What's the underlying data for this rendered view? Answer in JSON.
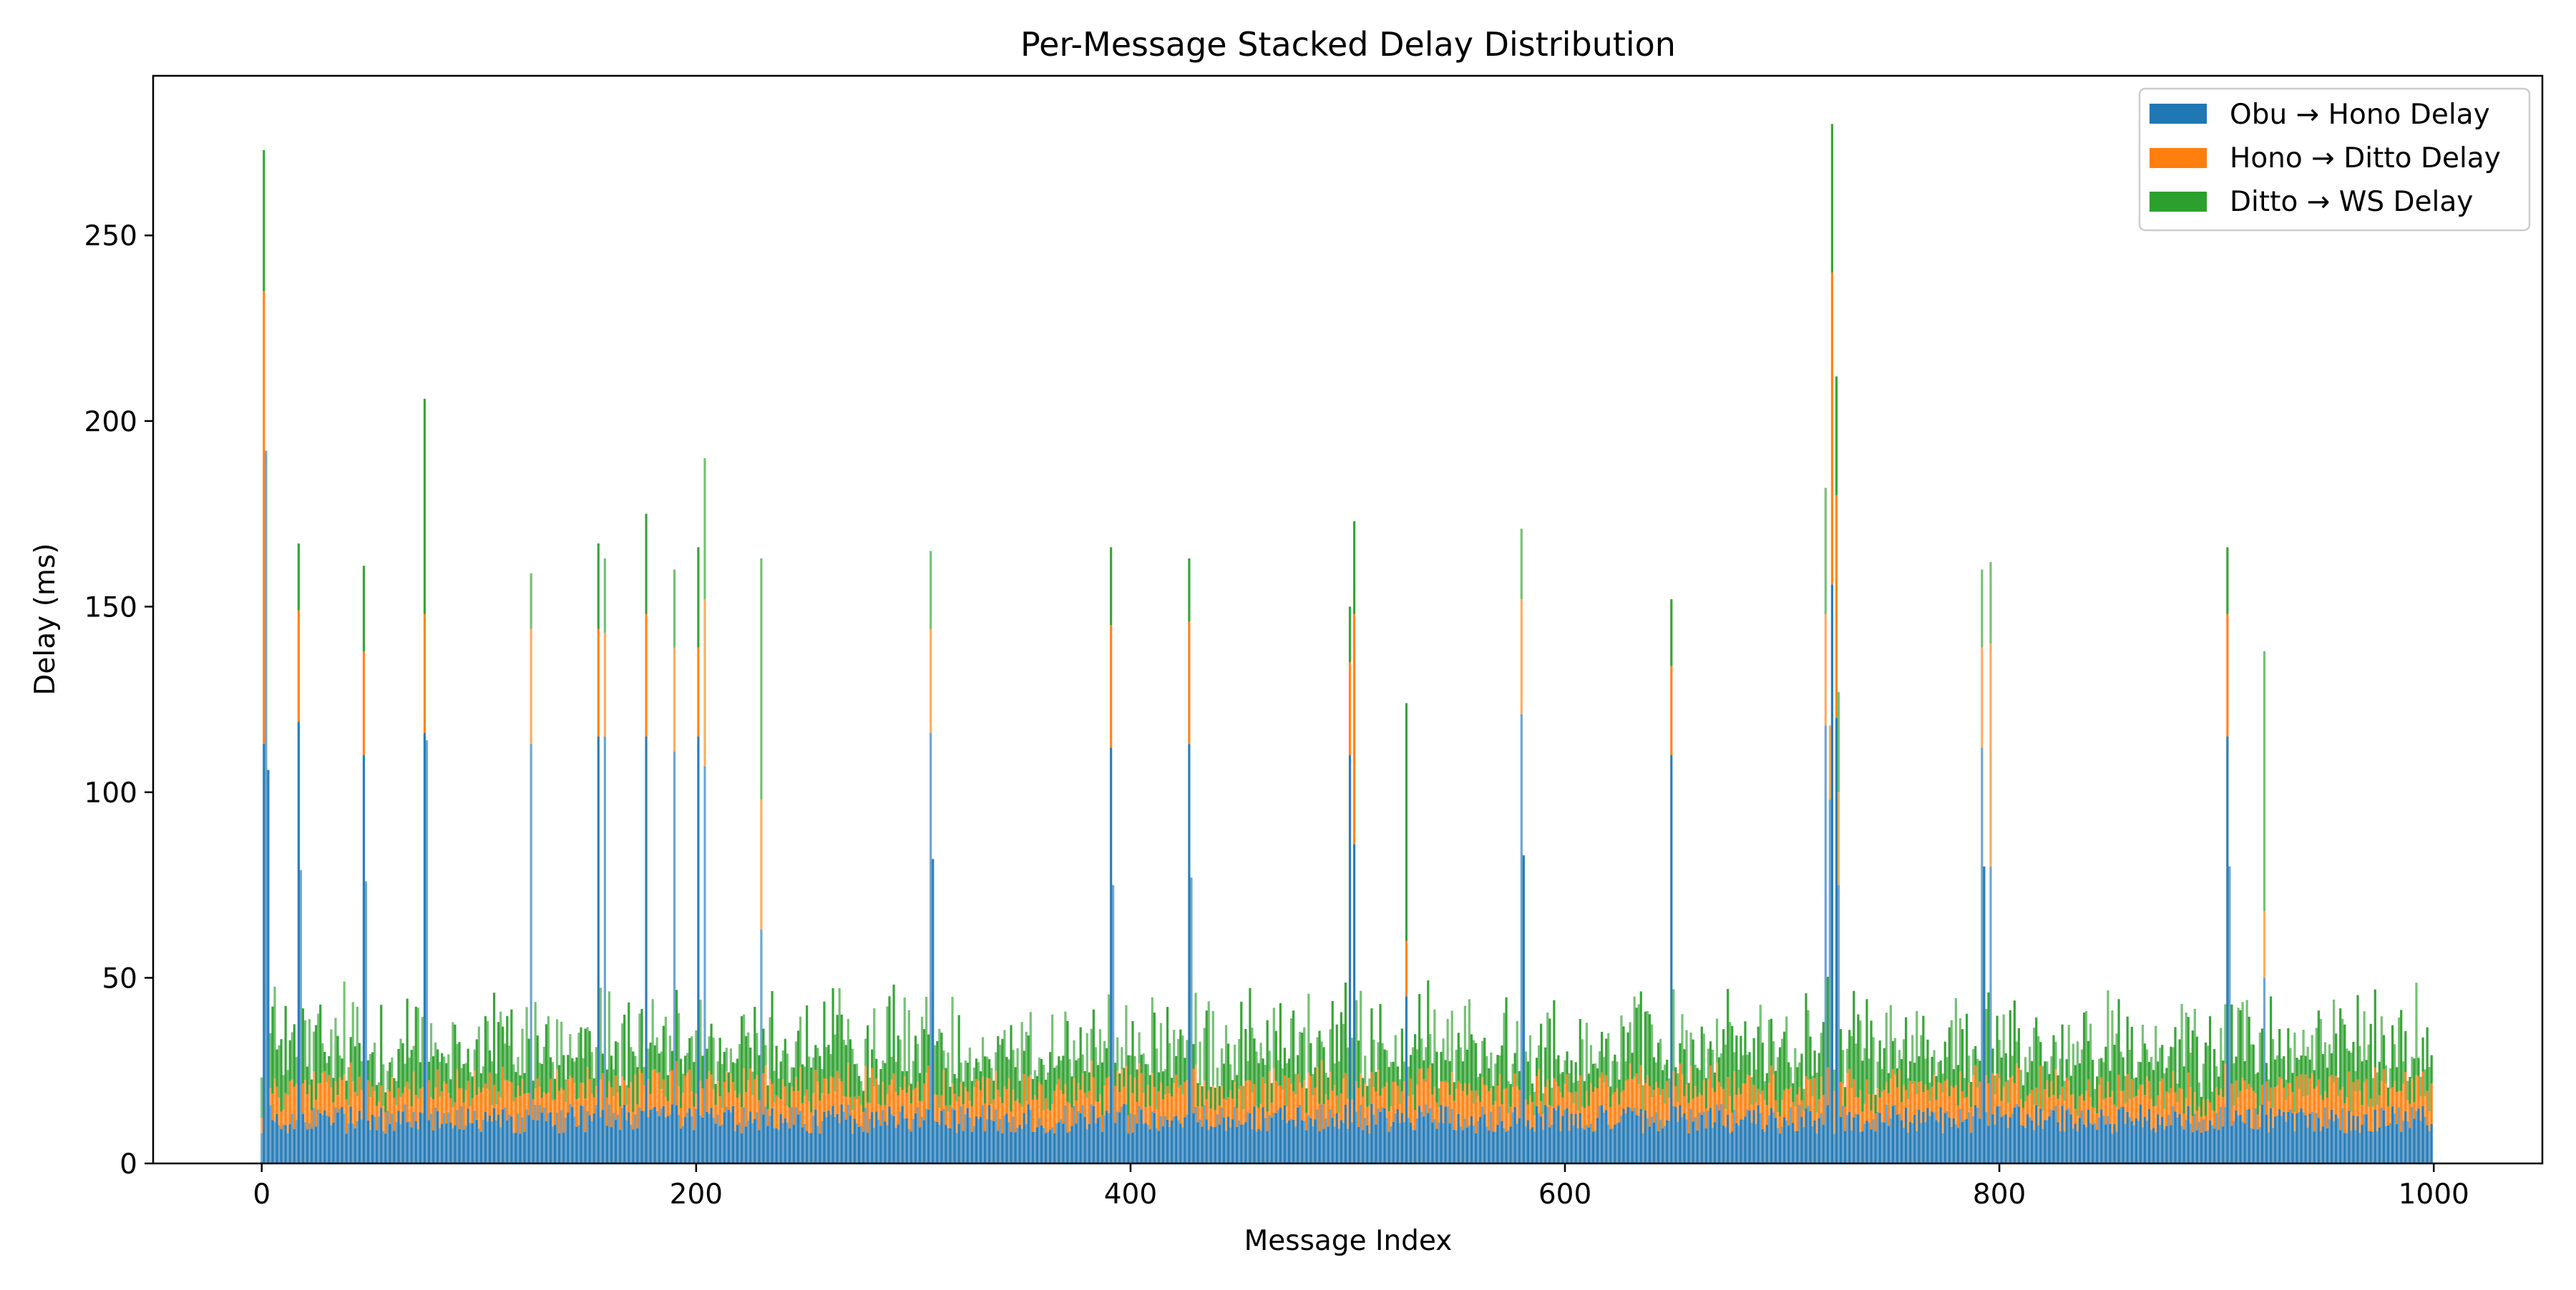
{
  "chart_data": {
    "type": "bar",
    "stacked": true,
    "title": "Per-Message Stacked Delay Distribution",
    "xlabel": "Message Index",
    "ylabel": "Delay (ms)",
    "xlim": [
      -50,
      1050
    ],
    "ylim": [
      0,
      293
    ],
    "xticks": [
      0,
      200,
      400,
      600,
      800,
      1000
    ],
    "yticks": [
      0,
      50,
      100,
      150,
      200,
      250
    ],
    "xtick_labels": [
      "0",
      "200",
      "400",
      "600",
      "800",
      "1000"
    ],
    "ytick_labels": [
      "0",
      "50",
      "100",
      "150",
      "200",
      "250"
    ],
    "grid": false,
    "legend_position": "top-right",
    "n_messages": 1000,
    "x_start": 0,
    "series": [
      {
        "name": "Obu → Hono Delay",
        "color": "#1f77b4",
        "typical_range": [
          8,
          16
        ]
      },
      {
        "name": "Hono → Ditto Delay",
        "color": "#ff7f0e",
        "typical_range": [
          4,
          12
        ]
      },
      {
        "name": "Ditto → WS Delay",
        "color": "#2ca02c",
        "typical_range": [
          5,
          25
        ]
      }
    ],
    "peaks": [
      {
        "x": 1,
        "values": [
          113,
          122,
          38
        ]
      },
      {
        "x": 2,
        "values": [
          192,
          0,
          0
        ]
      },
      {
        "x": 3,
        "values": [
          106,
          0,
          0
        ]
      },
      {
        "x": 17,
        "values": [
          119,
          30,
          18
        ]
      },
      {
        "x": 18,
        "values": [
          79,
          0,
          0
        ]
      },
      {
        "x": 47,
        "values": [
          110,
          28,
          23
        ]
      },
      {
        "x": 48,
        "values": [
          76,
          0,
          0
        ]
      },
      {
        "x": 75,
        "values": [
          116,
          32,
          58
        ]
      },
      {
        "x": 76,
        "values": [
          114,
          0,
          0
        ]
      },
      {
        "x": 124,
        "values": [
          113,
          31,
          15
        ]
      },
      {
        "x": 155,
        "values": [
          115,
          29,
          23
        ]
      },
      {
        "x": 158,
        "values": [
          115,
          28,
          20
        ]
      },
      {
        "x": 177,
        "values": [
          115,
          33,
          27
        ]
      },
      {
        "x": 190,
        "values": [
          111,
          28,
          21
        ]
      },
      {
        "x": 201,
        "values": [
          115,
          24,
          27
        ]
      },
      {
        "x": 204,
        "values": [
          107,
          45,
          38
        ]
      },
      {
        "x": 230,
        "values": [
          63,
          35,
          65
        ]
      },
      {
        "x": 308,
        "values": [
          116,
          28,
          21
        ]
      },
      {
        "x": 309,
        "values": [
          82,
          0,
          0
        ]
      },
      {
        "x": 391,
        "values": [
          112,
          33,
          21
        ]
      },
      {
        "x": 392,
        "values": [
          75,
          0,
          0
        ]
      },
      {
        "x": 427,
        "values": [
          113,
          33,
          17
        ]
      },
      {
        "x": 428,
        "values": [
          77,
          0,
          0
        ]
      },
      {
        "x": 501,
        "values": [
          110,
          25,
          15
        ]
      },
      {
        "x": 503,
        "values": [
          86,
          62,
          25
        ]
      },
      {
        "x": 527,
        "values": [
          45,
          15,
          64
        ]
      },
      {
        "x": 580,
        "values": [
          121,
          31,
          19
        ]
      },
      {
        "x": 581,
        "values": [
          83,
          0,
          0
        ]
      },
      {
        "x": 649,
        "values": [
          110,
          24,
          18
        ]
      },
      {
        "x": 720,
        "values": [
          118,
          30,
          34
        ]
      },
      {
        "x": 722,
        "values": [
          98,
          20,
          0
        ]
      },
      {
        "x": 723,
        "values": [
          156,
          84,
          40
        ]
      },
      {
        "x": 725,
        "values": [
          120,
          60,
          32
        ]
      },
      {
        "x": 726,
        "values": [
          75,
          25,
          27
        ]
      },
      {
        "x": 792,
        "values": [
          112,
          27,
          21
        ]
      },
      {
        "x": 793,
        "values": [
          80,
          0,
          0
        ]
      },
      {
        "x": 796,
        "values": [
          80,
          60,
          22
        ]
      },
      {
        "x": 905,
        "values": [
          115,
          33,
          18
        ]
      },
      {
        "x": 906,
        "values": [
          80,
          0,
          0
        ]
      },
      {
        "x": 922,
        "values": [
          50,
          18,
          70
        ]
      }
    ]
  }
}
